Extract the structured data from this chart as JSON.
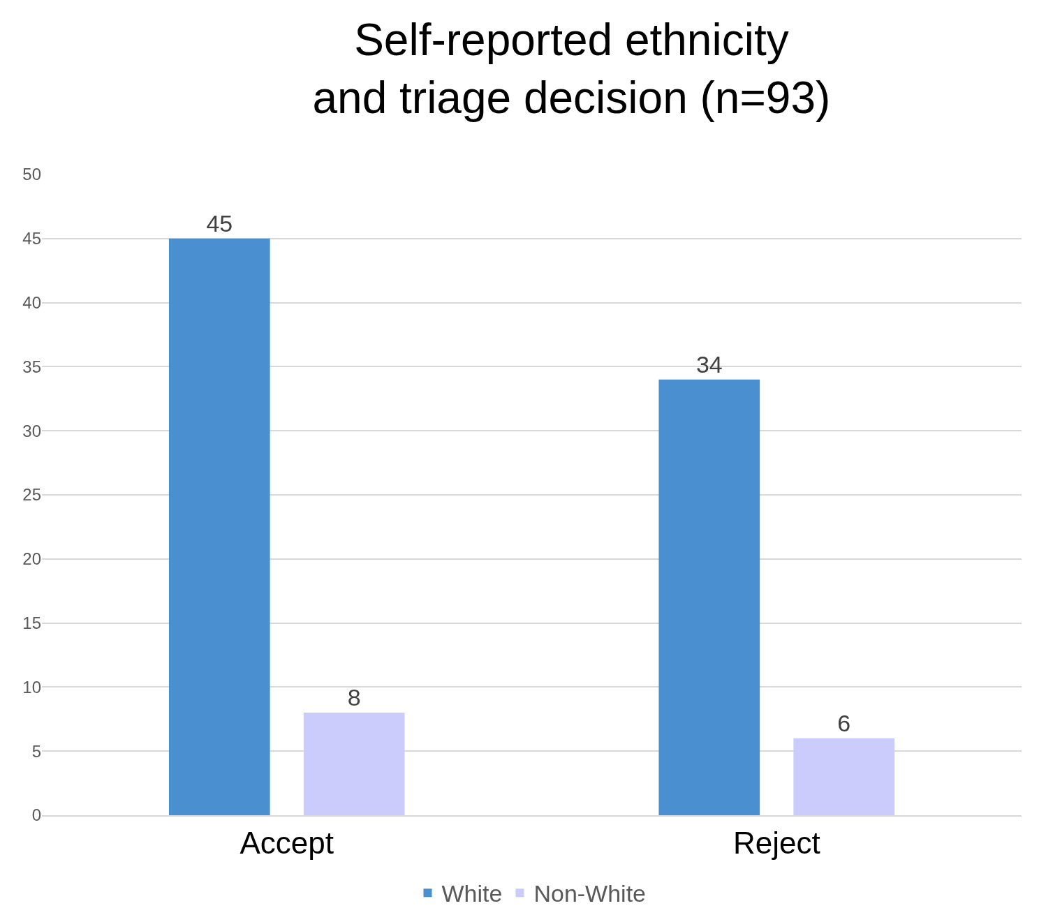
{
  "chart_data": {
    "type": "bar",
    "title": "Self-reported ethnicity and triage decision (n=93)",
    "categories": [
      "Accept",
      "Reject"
    ],
    "series": [
      {
        "name": "White",
        "color": "#4a8fd0",
        "values": [
          45,
          34
        ]
      },
      {
        "name": "Non-White",
        "color": "#ccccfc",
        "values": [
          8,
          6
        ]
      }
    ],
    "ylim": [
      0,
      50
    ],
    "yticks": [
      0,
      5,
      10,
      15,
      20,
      25,
      30,
      35,
      40,
      45,
      50
    ],
    "grid": "y",
    "legend": "bottom",
    "data_labels": true
  }
}
